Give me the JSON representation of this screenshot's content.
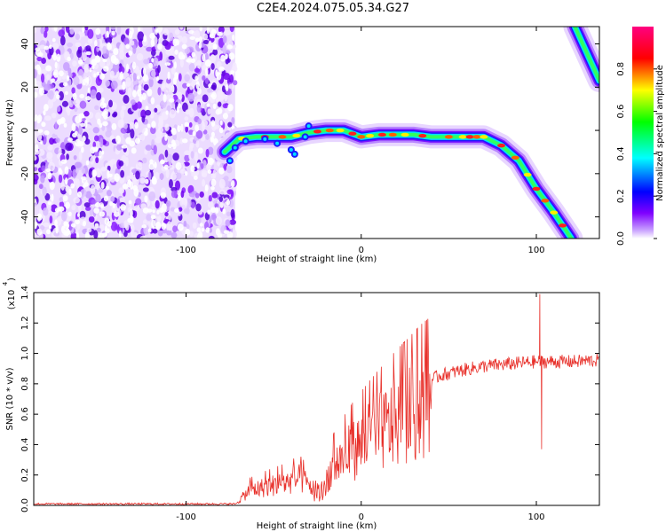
{
  "title": "C2E4.2024.075.05.34.G27",
  "chart_data": [
    {
      "type": "heatmap",
      "xlabel": "Height of straight line (km)",
      "ylabel": "Frequency (Hz)",
      "xlim": [
        -187,
        136
      ],
      "ylim": [
        -50,
        48
      ],
      "xticks": [
        -100,
        0,
        100
      ],
      "yticks": [
        -40,
        -20,
        0,
        20,
        40
      ],
      "colorbar": {
        "label": "Normalized spectral amplitude",
        "range": [
          0.0,
          1.0
        ],
        "ticks": [
          "0.0",
          "0.2",
          "0.4",
          "0.6",
          "0.8"
        ],
        "colormap": [
          "#ffffff",
          "#7f00ff",
          "#0000ff",
          "#00ffff",
          "#00ff00",
          "#ffff00",
          "#ff0000",
          "#ff0080"
        ]
      },
      "noise_region_x": [
        -187,
        -72
      ],
      "ridge": {
        "x": [
          -78,
          -70,
          -60,
          -50,
          -40,
          -30,
          -20,
          -10,
          0,
          10,
          20,
          30,
          40,
          50,
          60,
          70,
          80,
          90,
          100,
          110,
          120
        ],
        "y": [
          -10,
          -4,
          -3,
          -3,
          -3,
          -1,
          0,
          0,
          -3,
          -2,
          -2,
          -2,
          -3,
          -3,
          -3,
          -3,
          -7,
          -14,
          -27,
          -38,
          -50
        ]
      },
      "ridge2": {
        "x": [
          122,
          136
        ],
        "y": [
          48,
          23
        ]
      },
      "grid": false
    },
    {
      "type": "line",
      "xlabel": "Height of straight line (km)",
      "ylabel": "SNR (10 * v/v)",
      "yscale_label": "(x10",
      "yscale_exp": "4",
      "xlim": [
        -187,
        136
      ],
      "ylim": [
        0.0,
        1.4
      ],
      "xticks": [
        -100,
        0,
        100
      ],
      "yticks": [
        "0.0",
        "0.2",
        "0.4",
        "0.6",
        "0.8",
        "1.0",
        "1.2",
        "1.4"
      ],
      "series": [
        {
          "color": "#e8302a",
          "envelope": {
            "x": [
              -187,
              -72,
              -64,
              -55,
              -45,
              -35,
              -25,
              -15,
              -5,
              5,
              15,
              25,
              35,
              45,
              60,
              70,
              80,
              90,
              100,
              110,
              120,
              136
            ],
            "y": [
              0.01,
              0.01,
              0.12,
              0.15,
              0.18,
              0.22,
              0.12,
              0.33,
              0.45,
              0.55,
              0.64,
              0.72,
              0.8,
              0.86,
              0.9,
              0.92,
              0.93,
              0.94,
              0.95,
              0.95,
              0.95,
              0.96
            ]
          },
          "spikes": [
            {
              "x": 102,
              "y": 1.39
            },
            {
              "x": 103,
              "y": 0.37
            }
          ]
        }
      ],
      "grid": false
    }
  ]
}
